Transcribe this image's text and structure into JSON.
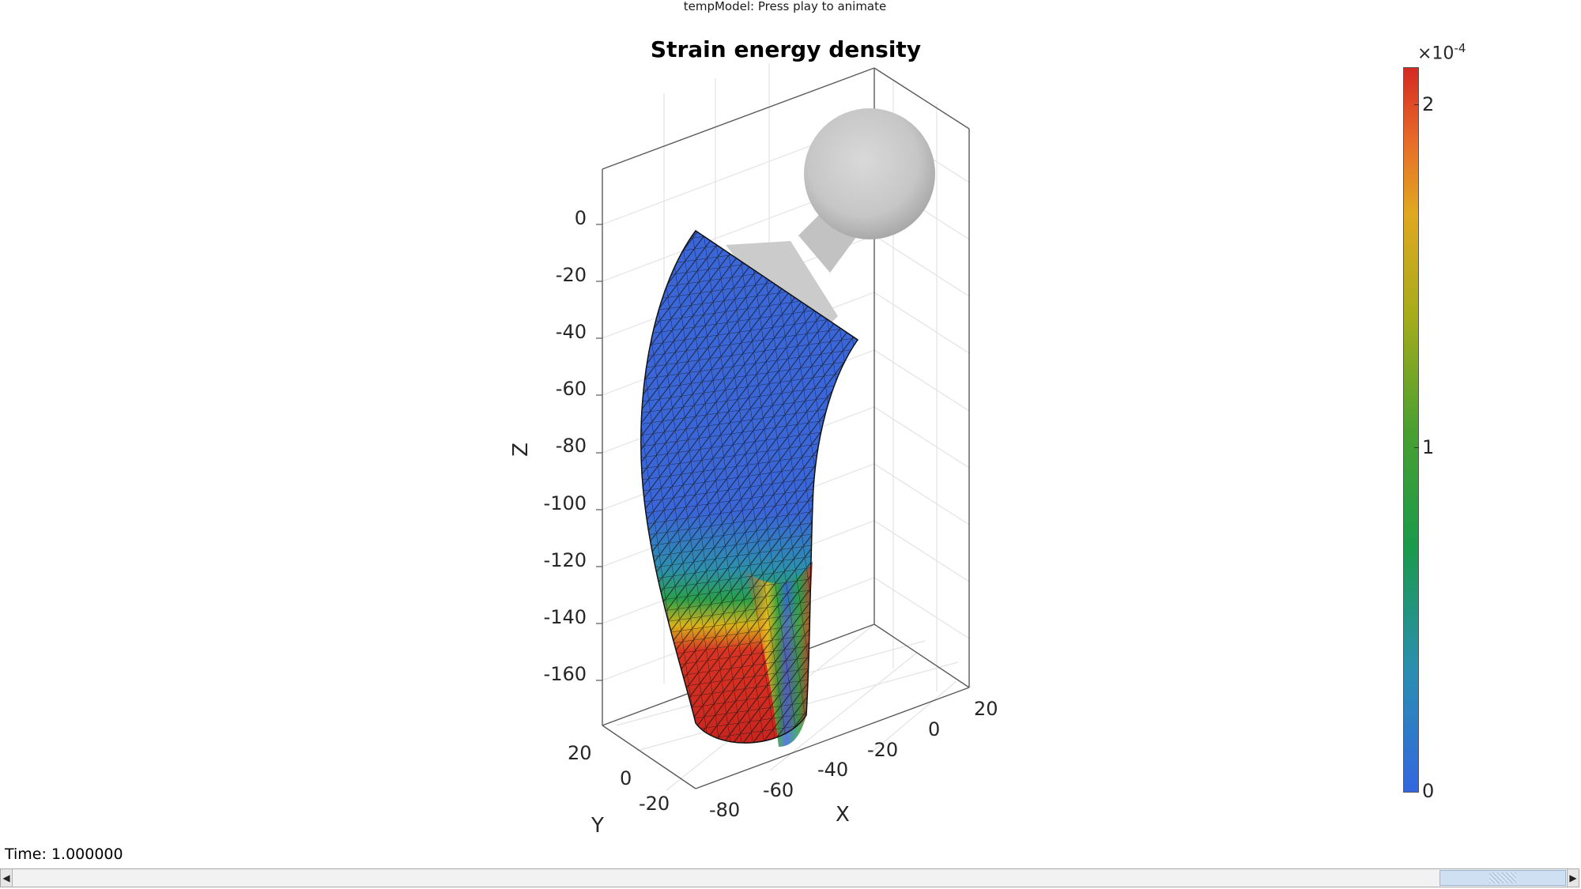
{
  "window": {
    "title": "tempModel: Press play to animate"
  },
  "plot": {
    "title": "Strain energy density",
    "xlabel": "X",
    "ylabel": "Y",
    "zlabel": "Z",
    "z_ticks": [
      "0",
      "-20",
      "-40",
      "-60",
      "-80",
      "-100",
      "-120",
      "-140",
      "-160"
    ],
    "x_ticks": [
      "-80",
      "-60",
      "-40",
      "-20",
      "0",
      "20"
    ],
    "y_ticks": [
      "20",
      "0",
      "-20"
    ]
  },
  "colorbar": {
    "multiplier": "×10",
    "exponent": "-4",
    "ticks": [
      "2",
      "1",
      "0"
    ],
    "colormap": [
      "#3366e0",
      "#2a8fb0",
      "#1a9a4a",
      "#6aab22",
      "#d8b31a",
      "#e8702a",
      "#d42a22"
    ]
  },
  "status": {
    "time_text": "Time: 1.000000"
  },
  "slider": {
    "left_arrow": "◀",
    "right_arrow": "▶",
    "position": 0.93
  }
}
